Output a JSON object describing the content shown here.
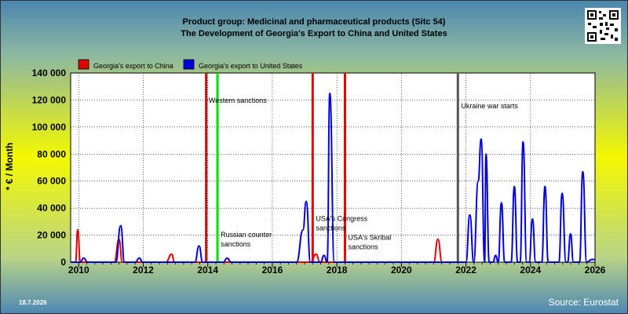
{
  "header": {
    "title_line1": "Product group: Medicinal and pharmaceutical products (Sitc 54)",
    "title_line2": "The Development of Georgia's Export to  China and United States"
  },
  "footer": {
    "date": "18.7.2026",
    "source": "Source: Eurostat"
  },
  "chart_data": {
    "type": "line",
    "ylabel": "* € / Month",
    "xlabel": "",
    "xlim": [
      2009.75,
      2026.0
    ],
    "ylim": [
      0,
      140000
    ],
    "x_ticks": [
      "2010",
      "2012",
      "2014",
      "2016",
      "2018",
      "2020",
      "2022",
      "2024",
      "2026"
    ],
    "y_ticks": [
      "0",
      "20 000",
      "40 000",
      "60 000",
      "80 000",
      "100 000",
      "120 000",
      "140 000"
    ],
    "grid": true,
    "legend_position": "top-left",
    "colors": {
      "china": "#e00000",
      "usa": "#0000dd"
    },
    "series": [
      {
        "name": "Georgia's export to China",
        "color": "#e00000",
        "points": [
          [
            2009.75,
            0
          ],
          [
            2009.9,
            0
          ],
          [
            2009.97,
            24000
          ],
          [
            2010.05,
            0
          ],
          [
            2010.5,
            0
          ],
          [
            2011.1,
            0
          ],
          [
            2011.25,
            17000
          ],
          [
            2011.35,
            0
          ],
          [
            2012.7,
            0
          ],
          [
            2012.88,
            6000
          ],
          [
            2012.97,
            0
          ],
          [
            2014.0,
            0
          ],
          [
            2017.2,
            0
          ],
          [
            2017.35,
            6000
          ],
          [
            2017.48,
            0
          ],
          [
            2021.0,
            0
          ],
          [
            2021.13,
            17000
          ],
          [
            2021.26,
            0
          ],
          [
            2021.6,
            0
          ]
        ]
      },
      {
        "name": "Georgia's export to United States",
        "color": "#0000dd",
        "points": [
          [
            2009.75,
            0
          ],
          [
            2010.05,
            0
          ],
          [
            2010.15,
            3000
          ],
          [
            2010.28,
            0
          ],
          [
            2011.15,
            0
          ],
          [
            2011.3,
            27000
          ],
          [
            2011.42,
            0
          ],
          [
            2011.75,
            0
          ],
          [
            2011.88,
            3000
          ],
          [
            2011.98,
            0
          ],
          [
            2013.6,
            0
          ],
          [
            2013.73,
            12000
          ],
          [
            2013.84,
            0
          ],
          [
            2014.48,
            0
          ],
          [
            2014.6,
            3000
          ],
          [
            2014.72,
            0
          ],
          [
            2016.75,
            0
          ],
          [
            2016.95,
            24000
          ],
          [
            2017.05,
            45000
          ],
          [
            2017.18,
            0
          ],
          [
            2017.5,
            0
          ],
          [
            2017.6,
            5000
          ],
          [
            2017.7,
            0
          ],
          [
            2017.78,
            125000
          ],
          [
            2017.92,
            0
          ],
          [
            2021.8,
            0
          ],
          [
            2022.0,
            0
          ],
          [
            2022.12,
            35000
          ],
          [
            2022.24,
            0
          ],
          [
            2022.38,
            60000
          ],
          [
            2022.47,
            91000
          ],
          [
            2022.58,
            0
          ],
          [
            2022.62,
            80000
          ],
          [
            2022.72,
            0
          ],
          [
            2022.84,
            0
          ],
          [
            2022.92,
            5000
          ],
          [
            2023.0,
            0
          ],
          [
            2023.1,
            44000
          ],
          [
            2023.2,
            0
          ],
          [
            2023.4,
            0
          ],
          [
            2023.5,
            56000
          ],
          [
            2023.6,
            0
          ],
          [
            2023.68,
            0
          ],
          [
            2023.77,
            89000
          ],
          [
            2023.88,
            0
          ],
          [
            2023.96,
            0
          ],
          [
            2024.06,
            32000
          ],
          [
            2024.16,
            0
          ],
          [
            2024.35,
            0
          ],
          [
            2024.45,
            56000
          ],
          [
            2024.55,
            0
          ],
          [
            2024.88,
            0
          ],
          [
            2024.98,
            51000
          ],
          [
            2025.1,
            0
          ],
          [
            2025.15,
            0
          ],
          [
            2025.24,
            21000
          ],
          [
            2025.33,
            0
          ],
          [
            2025.52,
            0
          ],
          [
            2025.62,
            67000
          ],
          [
            2025.74,
            0
          ],
          [
            2025.9,
            2000
          ],
          [
            2026.0,
            2000
          ]
        ]
      }
    ],
    "events": [
      {
        "x": 2013.95,
        "color": "#e00000",
        "label": "",
        "label_y": 0
      },
      {
        "x": 2014.3,
        "color": "#00dd00",
        "label": "",
        "label_y": 0
      },
      {
        "x": 2017.25,
        "color": "#e00000",
        "label": "",
        "label_y": 0
      },
      {
        "x": 2018.25,
        "color": "#e00000",
        "label": "",
        "label_y": 0
      },
      {
        "x": 2021.75,
        "color": "#555555",
        "label": "",
        "label_y": 0
      }
    ],
    "annotations": [
      {
        "text": "Western sanctions",
        "x": 2013.98,
        "y": 118000
      },
      {
        "text": "Russian counter",
        "x": 2014.35,
        "y": 18500
      },
      {
        "text": "sanctions",
        "x": 2014.35,
        "y": 11500
      },
      {
        "text": "USA's Congress",
        "x": 2017.3,
        "y": 30500
      },
      {
        "text": "sanctions",
        "x": 2017.3,
        "y": 23500
      },
      {
        "text": "USA's Skribal",
        "x": 2018.3,
        "y": 16500
      },
      {
        "text": "sanctions",
        "x": 2018.3,
        "y": 9500
      },
      {
        "text": "Ukraine war starts",
        "x": 2021.8,
        "y": 114000
      }
    ]
  }
}
